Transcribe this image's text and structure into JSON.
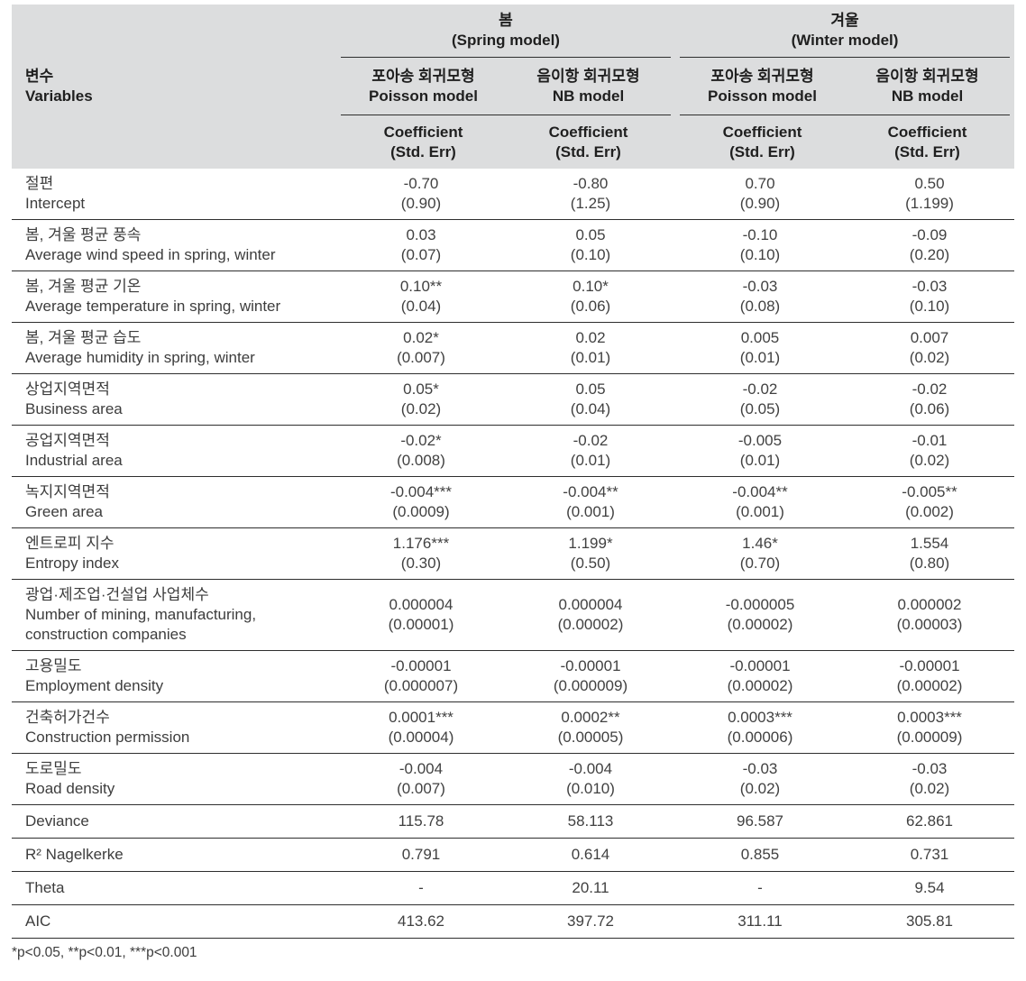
{
  "table": {
    "header": {
      "variables": {
        "ko": "변수",
        "en": "Variables"
      },
      "groups": [
        {
          "ko": "봄",
          "en": "(Spring model)"
        },
        {
          "ko": "겨울",
          "en": "(Winter model)"
        }
      ],
      "models": [
        {
          "ko": "포아송 회귀모형",
          "en": "Poisson model"
        },
        {
          "ko": "음이항 회귀모형",
          "en": "NB model"
        },
        {
          "ko": "포아송 회귀모형",
          "en": "Poisson model"
        },
        {
          "ko": "음이항 회귀모형",
          "en": "NB model"
        }
      ],
      "coef_label": {
        "line1": "Coefficient",
        "line2": "(Std. Err)"
      }
    },
    "rows": [
      {
        "ko": "절편",
        "en": "Intercept",
        "cells": [
          [
            "-0.70",
            "(0.90)"
          ],
          [
            "-0.80",
            "(1.25)"
          ],
          [
            "0.70",
            "(0.90)"
          ],
          [
            "0.50",
            "(1.199)"
          ]
        ]
      },
      {
        "ko": "봄, 겨울 평균 풍속",
        "en": "Average wind speed in spring, winter",
        "cells": [
          [
            "0.03",
            "(0.07)"
          ],
          [
            "0.05",
            "(0.10)"
          ],
          [
            "-0.10",
            "(0.10)"
          ],
          [
            "-0.09",
            "(0.20)"
          ]
        ]
      },
      {
        "ko": "봄, 겨울 평균 기온",
        "en": "Average temperature in spring, winter",
        "cells": [
          [
            "0.10**",
            "(0.04)"
          ],
          [
            "0.10*",
            "(0.06)"
          ],
          [
            "-0.03",
            "(0.08)"
          ],
          [
            "-0.03",
            "(0.10)"
          ]
        ]
      },
      {
        "ko": "봄, 겨울 평균 습도",
        "en": "Average humidity in spring, winter",
        "cells": [
          [
            "0.02*",
            "(0.007)"
          ],
          [
            "0.02",
            "(0.01)"
          ],
          [
            "0.005",
            "(0.01)"
          ],
          [
            "0.007",
            "(0.02)"
          ]
        ]
      },
      {
        "ko": "상업지역면적",
        "en": "Business area",
        "cells": [
          [
            "0.05*",
            "(0.02)"
          ],
          [
            "0.05",
            "(0.04)"
          ],
          [
            "-0.02",
            "(0.05)"
          ],
          [
            "-0.02",
            "(0.06)"
          ]
        ]
      },
      {
        "ko": "공업지역면적",
        "en": "Industrial area",
        "cells": [
          [
            "-0.02*",
            "(0.008)"
          ],
          [
            "-0.02",
            "(0.01)"
          ],
          [
            "-0.005",
            "(0.01)"
          ],
          [
            "-0.01",
            "(0.02)"
          ]
        ]
      },
      {
        "ko": "녹지지역면적",
        "en": "Green area",
        "cells": [
          [
            "-0.004***",
            "(0.0009)"
          ],
          [
            "-0.004**",
            "(0.001)"
          ],
          [
            "-0.004**",
            "(0.001)"
          ],
          [
            "-0.005**",
            "(0.002)"
          ]
        ]
      },
      {
        "ko": "엔트로피 지수",
        "en": "Entropy index",
        "cells": [
          [
            "1.176***",
            "(0.30)"
          ],
          [
            "1.199*",
            "(0.50)"
          ],
          [
            "1.46*",
            "(0.70)"
          ],
          [
            "1.554",
            "(0.80)"
          ]
        ]
      },
      {
        "ko": "광업·제조업·건설업 사업체수",
        "en": "Number of mining, manufacturing,\nconstruction companies",
        "cells": [
          [
            "0.000004",
            "(0.00001)"
          ],
          [
            "0.000004",
            "(0.00002)"
          ],
          [
            "-0.000005",
            "(0.00002)"
          ],
          [
            "0.000002",
            "(0.00003)"
          ]
        ]
      },
      {
        "ko": "고용밀도",
        "en": "Employment density",
        "cells": [
          [
            "-0.00001",
            "(0.000007)"
          ],
          [
            "-0.00001",
            "(0.000009)"
          ],
          [
            "-0.00001",
            "(0.00002)"
          ],
          [
            "-0.00001",
            "(0.00002)"
          ]
        ]
      },
      {
        "ko": "건축허가건수",
        "en": "Construction permission",
        "cells": [
          [
            "0.0001***",
            "(0.00004)"
          ],
          [
            "0.0002**",
            "(0.00005)"
          ],
          [
            "0.0003***",
            "(0.00006)"
          ],
          [
            "0.0003***",
            "(0.00009)"
          ]
        ]
      },
      {
        "ko": "도로밀도",
        "en": "Road density",
        "cells": [
          [
            "-0.004",
            "(0.007)"
          ],
          [
            "-0.004",
            "(0.010)"
          ],
          [
            "-0.03",
            "(0.02)"
          ],
          [
            "-0.03",
            "(0.02)"
          ]
        ]
      }
    ],
    "stat_rows": [
      {
        "label": "Deviance",
        "values": [
          "115.78",
          "58.113",
          "96.587",
          "62.861"
        ]
      },
      {
        "label": "R² Nagelkerke",
        "values": [
          "0.791",
          "0.614",
          "0.855",
          "0.731"
        ]
      },
      {
        "label": "Theta",
        "values": [
          "-",
          "20.11",
          "-",
          "9.54"
        ]
      },
      {
        "label": "AIC",
        "values": [
          "413.62",
          "397.72",
          "311.11",
          "305.81"
        ]
      }
    ],
    "footnote": "*p<0.05, **p<0.01, ***p<0.001"
  }
}
